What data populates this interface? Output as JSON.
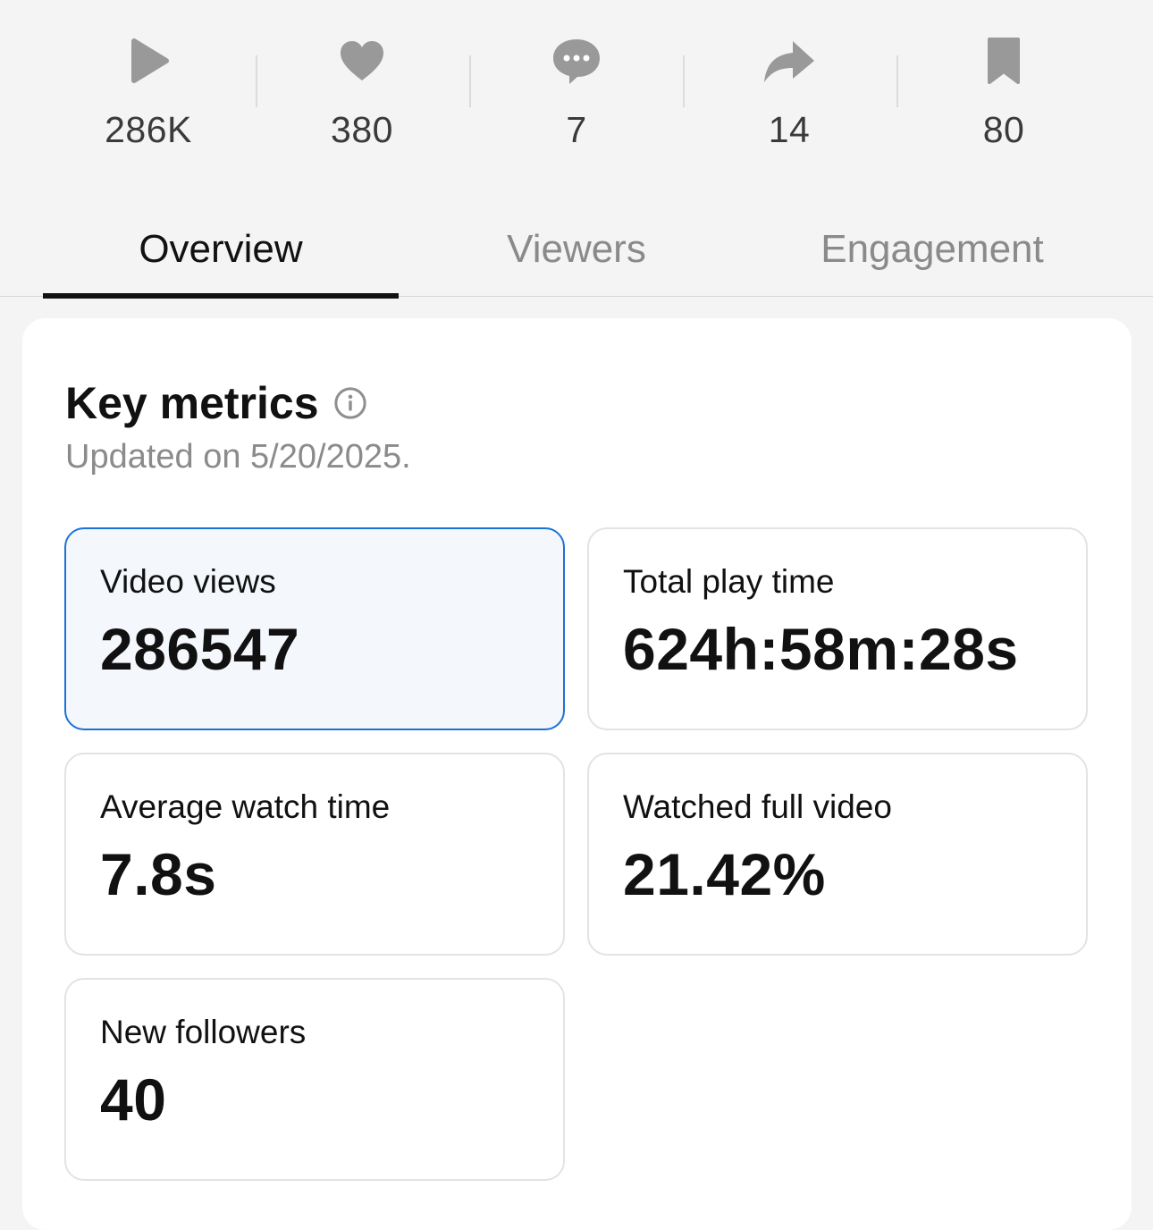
{
  "stats": [
    {
      "icon": "play-icon",
      "count": "286K"
    },
    {
      "icon": "heart-icon",
      "count": "380"
    },
    {
      "icon": "comment-icon",
      "count": "7"
    },
    {
      "icon": "share-icon",
      "count": "14"
    },
    {
      "icon": "bookmark-icon",
      "count": "80"
    }
  ],
  "tabs": [
    {
      "label": "Overview",
      "active": true
    },
    {
      "label": "Viewers",
      "active": false
    },
    {
      "label": "Engagement",
      "active": false
    }
  ],
  "key_metrics": {
    "title": "Key metrics",
    "info_icon": "info-icon",
    "updated": "Updated on 5/20/2025.",
    "metrics": [
      {
        "label": "Video views",
        "value": "286547",
        "selected": true
      },
      {
        "label": "Total play time",
        "value": "624h:58m:28s",
        "selected": false
      },
      {
        "label": "Average watch time",
        "value": "7.8s",
        "selected": false
      },
      {
        "label": "Watched full video",
        "value": "21.42%",
        "selected": false
      },
      {
        "label": "New followers",
        "value": "40",
        "selected": false
      }
    ]
  },
  "colors": {
    "icon_gray": "#999999",
    "selected_border": "#1b72d6",
    "selected_bg": "#f4f8fd"
  }
}
